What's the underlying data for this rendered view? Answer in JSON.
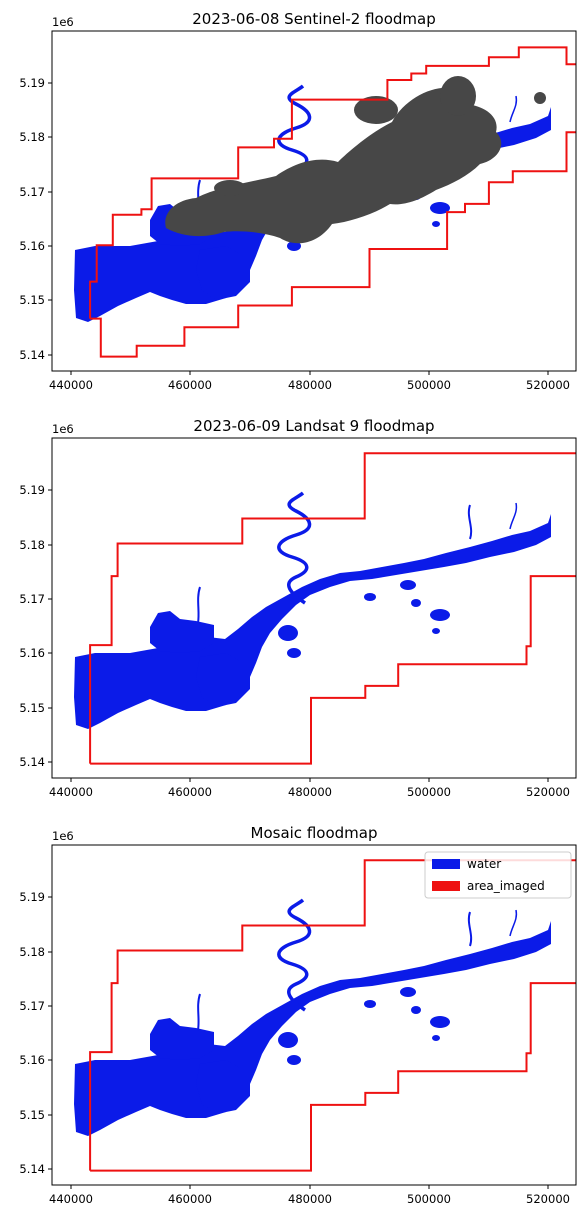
{
  "panels": [
    {
      "title": "2023-06-08 Sentinel-2 floodmap",
      "offset_label": "1e6",
      "x_ticks": [
        "440000",
        "460000",
        "480000",
        "500000",
        "520000"
      ],
      "y_ticks": [
        "5.14",
        "5.15",
        "5.16",
        "5.17",
        "5.18",
        "5.19"
      ],
      "has_cloud": true,
      "has_legend": false,
      "area_imaged_outline": [
        [
          443.2,
          5.1467
        ],
        [
          443.2,
          5.1535
        ],
        [
          444.3,
          5.1535
        ],
        [
          444.3,
          5.1602
        ],
        [
          447,
          5.1602
        ],
        [
          447,
          5.1658
        ],
        [
          451.8,
          5.1658
        ],
        [
          451.8,
          5.1668
        ],
        [
          453.5,
          5.1668
        ],
        [
          453.5,
          5.1725
        ],
        [
          468,
          5.1725
        ],
        [
          468,
          5.1782
        ],
        [
          474,
          5.1782
        ],
        [
          474,
          5.1798
        ],
        [
          477,
          5.1798
        ],
        [
          477,
          5.187
        ],
        [
          493,
          5.187
        ],
        [
          493,
          5.1906
        ],
        [
          497,
          5.1906
        ],
        [
          497,
          5.1918
        ],
        [
          499.5,
          5.1918
        ],
        [
          499.5,
          5.1932
        ],
        [
          510,
          5.1932
        ],
        [
          510,
          5.1948
        ],
        [
          515,
          5.1948
        ],
        [
          515,
          5.1966
        ],
        [
          523,
          5.1966
        ],
        [
          523,
          5.1935
        ],
        [
          531,
          5.1935
        ],
        [
          531,
          5.181
        ],
        [
          523,
          5.181
        ],
        [
          523,
          5.1738
        ],
        [
          514,
          5.1738
        ],
        [
          514,
          5.1718
        ],
        [
          510,
          5.1718
        ],
        [
          510,
          5.1678
        ],
        [
          506,
          5.1678
        ],
        [
          506,
          5.1663
        ],
        [
          503,
          5.1663
        ],
        [
          503,
          5.1595
        ],
        [
          490,
          5.1595
        ],
        [
          490,
          5.1525
        ],
        [
          477,
          5.1525
        ],
        [
          477,
          5.1491
        ],
        [
          468,
          5.1491
        ],
        [
          468,
          5.1451
        ],
        [
          459,
          5.1451
        ],
        [
          459,
          5.1417
        ],
        [
          451,
          5.1417
        ],
        [
          451,
          5.1397
        ],
        [
          445,
          5.1397
        ],
        [
          445,
          5.1467
        ],
        [
          443.2,
          5.1467
        ]
      ]
    },
    {
      "title": "2023-06-09 Landsat 9 floodmap",
      "offset_label": "1e6",
      "x_ticks": [
        "440000",
        "460000",
        "480000",
        "500000",
        "520000"
      ],
      "y_ticks": [
        "5.14",
        "5.15",
        "5.16",
        "5.17",
        "5.18",
        "5.19"
      ],
      "has_cloud": false,
      "has_legend": false,
      "area_imaged_outline": [
        [
          443.2,
          5.1397
        ],
        [
          443.2,
          5.1615
        ],
        [
          446.8,
          5.1615
        ],
        [
          446.8,
          5.1742
        ],
        [
          447.8,
          5.1742
        ],
        [
          447.8,
          5.1802
        ],
        [
          468.7,
          5.1802
        ],
        [
          468.7,
          5.1848
        ],
        [
          489.2,
          5.1848
        ],
        [
          489.2,
          5.1968
        ],
        [
          531,
          5.1968
        ],
        [
          531,
          5.1742
        ],
        [
          517,
          5.1742
        ],
        [
          517,
          5.1613
        ],
        [
          516.3,
          5.1613
        ],
        [
          516.3,
          5.158
        ],
        [
          494.8,
          5.158
        ],
        [
          494.8,
          5.154
        ],
        [
          489.3,
          5.154
        ],
        [
          489.3,
          5.1518
        ],
        [
          480.2,
          5.1518
        ],
        [
          480.2,
          5.1397
        ],
        [
          443.2,
          5.1397
        ]
      ]
    },
    {
      "title": "Mosaic floodmap",
      "offset_label": "1e6",
      "x_ticks": [
        "440000",
        "460000",
        "480000",
        "500000",
        "520000"
      ],
      "y_ticks": [
        "5.14",
        "5.15",
        "5.16",
        "5.17",
        "5.18",
        "5.19"
      ],
      "has_cloud": false,
      "has_legend": true,
      "area_imaged_outline": [
        [
          443.2,
          5.1397
        ],
        [
          443.2,
          5.1615
        ],
        [
          446.8,
          5.1615
        ],
        [
          446.8,
          5.1742
        ],
        [
          447.8,
          5.1742
        ],
        [
          447.8,
          5.1802
        ],
        [
          468.7,
          5.1802
        ],
        [
          468.7,
          5.1848
        ],
        [
          489.2,
          5.1848
        ],
        [
          489.2,
          5.1968
        ],
        [
          531,
          5.1968
        ],
        [
          531,
          5.1742
        ],
        [
          517,
          5.1742
        ],
        [
          517,
          5.1613
        ],
        [
          516.3,
          5.1613
        ],
        [
          516.3,
          5.158
        ],
        [
          494.8,
          5.158
        ],
        [
          494.8,
          5.154
        ],
        [
          489.3,
          5.154
        ],
        [
          489.3,
          5.1518
        ],
        [
          480.2,
          5.1518
        ],
        [
          480.2,
          5.1397
        ],
        [
          443.2,
          5.1397
        ]
      ]
    }
  ],
  "legend": {
    "items": [
      {
        "label": "water",
        "color": "#0b1be8"
      },
      {
        "label": "area_imaged",
        "color": "#ee1111"
      }
    ]
  },
  "colors": {
    "water": "#0b1be8",
    "area_imaged": "#ee1111",
    "cloud": "#474747"
  }
}
